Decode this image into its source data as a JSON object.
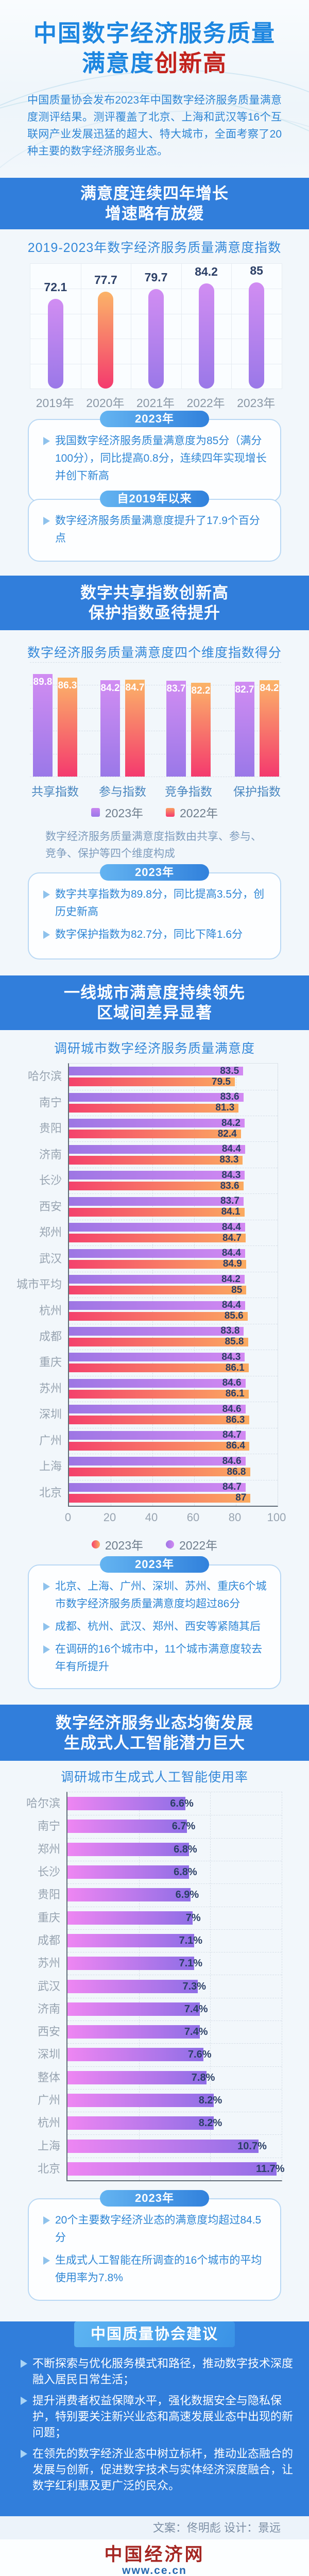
{
  "hero": {
    "title_line1": "中国数字经济服务质量",
    "title_line2_blue": "满意度",
    "title_line2_red": "创新高",
    "intro": "中国质量协会发布2023年中国数字经济服务质量满意度测评结果。测评覆盖了北京、上海和武汉等16个互联网产业发展迅猛的超大、特大城市，全面考察了20种主要的数字经济服务业态。"
  },
  "bands": {
    "b1": {
      "line1": "满意度连续四年增长",
      "line2": "增速略有放缓"
    },
    "b2": {
      "line1": "数字共享指数创新高",
      "line2": "保护指数亟待提升"
    },
    "b3": {
      "line1": "一线城市满意度持续领先",
      "line2": "区域间差异显著"
    },
    "b4": {
      "line1": "数字经济服务业态均衡发展",
      "line2": "生成式人工智能潜力巨大"
    }
  },
  "callouts": {
    "c1": {
      "badge": "2023年",
      "bullets": [
        "我国数字经济服务质量满意度为85分（满分100分），同比提高0.8分，连续四年实现增长并创下新高"
      ]
    },
    "c2": {
      "badge": "自2019年以来",
      "bullets": [
        "数字经济服务质量满意度提升了17.9个百分点"
      ]
    },
    "c3": {
      "badge": "2023年",
      "bullets": [
        "数字共享指数为89.8分，同比提高3.5分，创历史新高",
        "数字保护指数为82.7分，同比下降1.6分"
      ]
    },
    "c4": {
      "badge": "2023年",
      "bullets": [
        "北京、上海、广州、深圳、苏州、重庆6个城市数字经济服务质量满意度均超过86分",
        "成都、杭州、武汉、郑州、西安等紧随其后",
        "在调研的16个城市中，11个城市满意度较去年有所提升"
      ]
    },
    "c5": {
      "badge": "2023年",
      "bullets": [
        "20个主要数字经济业态的满意度均超过84.5分",
        "生成式人工智能在所调查的16个城市的平均使用率为7.8%"
      ]
    }
  },
  "chart_data": [
    {
      "type": "bar",
      "title": "2019-2023年数字经济服务质量满意度指数",
      "categories": [
        "2019年",
        "2020年",
        "2021年",
        "2022年",
        "2023年"
      ],
      "values": [
        72.1,
        77.7,
        79.7,
        84.2,
        85
      ],
      "ylim": [
        0,
        100
      ],
      "grid": "on",
      "highlight_category": "2020年"
    },
    {
      "type": "bar",
      "title": "数字经济服务质量满意度四个维度指数得分",
      "categories": [
        "共享指数",
        "参与指数",
        "竞争指数",
        "保护指数"
      ],
      "series": [
        {
          "name": "2023年",
          "values": [
            89.8,
            84.2,
            83.7,
            82.7
          ]
        },
        {
          "name": "2022年",
          "values": [
            86.3,
            84.7,
            82.2,
            84.2
          ]
        }
      ],
      "ylim": [
        0,
        100
      ],
      "legend_position": "bottom",
      "note": "数字经济服务质量满意度指数由共享、参与、竞争、保护等四个维度构成"
    },
    {
      "type": "bar",
      "orientation": "horizontal",
      "title": "调研城市数字经济服务质量满意度",
      "categories": [
        "哈尔滨",
        "南宁",
        "贵阳",
        "济南",
        "长沙",
        "西安",
        "郑州",
        "武汉",
        "城市平均",
        "杭州",
        "成都",
        "重庆",
        "苏州",
        "深圳",
        "广州",
        "上海",
        "北京"
      ],
      "series": [
        {
          "name": "2022年",
          "values": [
            83.5,
            83.6,
            84.2,
            84.4,
            84.3,
            83.7,
            84.4,
            84.4,
            84.2,
            84.4,
            83.8,
            84.3,
            84.6,
            84.6,
            84.7,
            84.6,
            84.7
          ]
        },
        {
          "name": "2023年",
          "values": [
            79.5,
            81.3,
            82.4,
            83.3,
            83.6,
            84.1,
            84.7,
            84.9,
            85,
            85.6,
            85.8,
            86.1,
            86.1,
            86.3,
            86.4,
            86.8,
            87
          ]
        }
      ],
      "xlim": [
        0,
        100
      ],
      "x_ticks": [
        0,
        20,
        40,
        60,
        80,
        100
      ],
      "legend_position": "bottom"
    },
    {
      "type": "bar",
      "orientation": "horizontal",
      "title": "调研城市生成式人工智能使用率",
      "unit": "%",
      "categories": [
        "哈尔滨",
        "南宁",
        "郑州",
        "长沙",
        "贵阳",
        "重庆",
        "成都",
        "苏州",
        "武汉",
        "济南",
        "西安",
        "深圳",
        "整体",
        "广州",
        "杭州",
        "上海",
        "北京"
      ],
      "values": [
        6.6,
        6.7,
        6.8,
        6.8,
        6.9,
        7,
        7.1,
        7.1,
        7.3,
        7.4,
        7.4,
        7.6,
        7.8,
        8.2,
        8.2,
        10.7,
        11.7
      ],
      "xlim": [
        0,
        12
      ],
      "grid": "dashed"
    }
  ],
  "advice": {
    "title": "中国质量协会建议",
    "bullets": [
      "不断探索与优化服务模式和路径，推动数字技术深度融入居民日常生活；",
      "提升消费者权益保障水平，强化数据安全与隐私保护，特别要关注新兴业态和高速发展业态中出现的新问题；",
      "在领先的数字经济业态中树立标杆，推动业态融合的发展与创新，促进数字技术与实体经济深度融合，让数字红利惠及更广泛的民众。"
    ]
  },
  "credit": "文案：佟明彪  设计：景远",
  "footer": {
    "logo_text": "中国经济网",
    "logo_url": "www.ce.cn"
  },
  "colors": {
    "band_blue": "#317edb",
    "title_blue": "#1d86e0",
    "accent_red": "#c2221c",
    "text_blue": "#2e86d5",
    "purple_bar": "#9a78e8",
    "orange_bar": "#f43a6e",
    "value_navy": "#2b3f66"
  }
}
